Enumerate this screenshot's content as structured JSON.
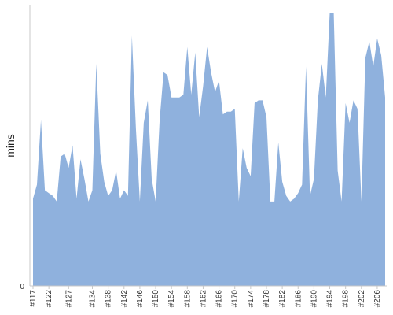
{
  "chart_data": {
    "type": "area",
    "title": "",
    "xlabel": "",
    "ylabel": "mins",
    "y_tick_labels": [
      "0"
    ],
    "ylim": [
      0,
      100
    ],
    "grid": false,
    "legend": "none",
    "x_tick_labels": [
      "#117",
      "#122",
      "#127",
      "#134",
      "#138",
      "#142",
      "#146",
      "#150",
      "#154",
      "#158",
      "#162",
      "#166",
      "#170",
      "#174",
      "#178",
      "#182",
      "#186",
      "#190",
      "#194",
      "#198",
      "#202",
      "#206"
    ],
    "x_tick_build_index": [
      0,
      4,
      9,
      15,
      19,
      23,
      27,
      31,
      35,
      39,
      43,
      47,
      51,
      55,
      59,
      63,
      67,
      71,
      75,
      79,
      83,
      87
    ],
    "series": [
      {
        "color": "#8fb1dd",
        "values": [
          31,
          36,
          59,
          34,
          33,
          32,
          30,
          46,
          47,
          42,
          50,
          31,
          45,
          38,
          30,
          34,
          79,
          47,
          37,
          32,
          34,
          41,
          31,
          34,
          32,
          89,
          56,
          30,
          58,
          66,
          38,
          30,
          59,
          76,
          75,
          67,
          67,
          67,
          68,
          85,
          68,
          83,
          60,
          71,
          85,
          76,
          69,
          73,
          61,
          62,
          62,
          63,
          30,
          49,
          42,
          39,
          65,
          66,
          66,
          60,
          30,
          30,
          51,
          37,
          32,
          30,
          31,
          33,
          36,
          78,
          32,
          38,
          66,
          79,
          67,
          97,
          97,
          41,
          30,
          65,
          58,
          66,
          63,
          30,
          81,
          87,
          78,
          88,
          82,
          67
        ]
      }
    ]
  }
}
